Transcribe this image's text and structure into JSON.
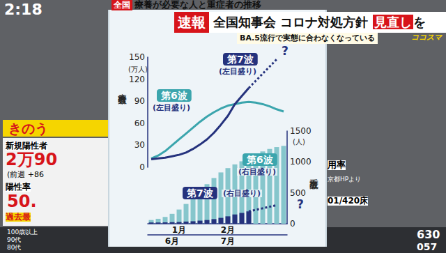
{
  "screen": {
    "clock": "2:18",
    "breaking": "速報",
    "headline": "全国知事会 コロナ対処方針 ",
    "headline_highlight": "見直し",
    "headline_end": "を",
    "subheadline": "BA.5流行で実態に合わなくなっている",
    "program": "ココスマ",
    "left_panel": {
      "tag": "きのう",
      "rows": [
        "新規陽性者",
        "2万90",
        "(前週 +86",
        "陽性率",
        "50.",
        "過去最",
        "100歳以上",
        "90代",
        "80代"
      ]
    },
    "right_panel": [
      "用率",
      "京都HPより",
      "01/420床",
      "630",
      "057"
    ]
  },
  "chart_data": {
    "type": "line",
    "title_tag": "全国",
    "title": "療養が必要な人と重症者の推移",
    "ylabel": "療養者数",
    "yunit": "(万人)",
    "y2label": "重症者数",
    "y2unit": "(人)",
    "ylim": [
      0,
      150
    ],
    "yticks": [
      0,
      30,
      60,
      90,
      120,
      150
    ],
    "y2lim": [
      0,
      1500
    ],
    "y2ticks": [
      0,
      500,
      1000,
      1500
    ],
    "grid": false,
    "x_axes": [
      {
        "categories": [
          null,
          null,
          null,
          null,
          "1月",
          null,
          null,
          null,
          null,
          null,
          null,
          "2月",
          null,
          null,
          null,
          null,
          null,
          null,
          null,
          null
        ]
      },
      {
        "categories": [
          null,
          null,
          null,
          "6月",
          null,
          null,
          null,
          null,
          null,
          null,
          null,
          "7月",
          null,
          null,
          null,
          null,
          null,
          null,
          null,
          null
        ]
      }
    ],
    "series": [
      {
        "name": "第6波",
        "type": "bar",
        "axis": "y2",
        "x_axis": 0,
        "color": "#86c6cc",
        "values": [
          60,
          80,
          110,
          160,
          230,
          320,
          420,
          530,
          640,
          740,
          830,
          900,
          960,
          1010,
          1060,
          1120,
          1170,
          1210,
          1240,
          1260
        ]
      },
      {
        "name": "第7波",
        "type": "bar",
        "axis": "y2",
        "x_axis": 1,
        "color": "#25327d",
        "values": [
          20,
          20,
          22,
          25,
          28,
          35,
          40,
          50,
          60,
          75,
          95,
          120,
          150,
          175,
          200,
          null,
          null,
          null,
          null,
          null
        ]
      },
      {
        "name": "第7波",
        "type": "line",
        "axis": "y2",
        "x_axis": 1,
        "color": "#25327d",
        "line_style": "dotted",
        "values": [
          null,
          null,
          null,
          null,
          null,
          null,
          null,
          null,
          null,
          null,
          null,
          null,
          null,
          null,
          200,
          null,
          null,
          null,
          300,
          null
        ]
      },
      {
        "name": "第6波",
        "type": "line",
        "axis": "y",
        "x_axis": 0,
        "color": "#3ba5ad",
        "values": [
          12,
          16,
          22,
          30,
          38,
          46,
          54,
          62,
          69,
          75,
          80,
          84,
          86,
          88,
          89,
          88,
          86,
          83,
          79,
          76
        ]
      },
      {
        "name": "第7波",
        "type": "line",
        "axis": "y",
        "x_axis": 1,
        "color": "#25327d",
        "values": [
          11,
          12,
          13,
          15,
          17,
          20,
          25,
          31,
          38,
          47,
          58,
          70,
          86,
          97,
          108,
          null,
          null,
          null,
          null,
          null
        ]
      },
      {
        "name": "第7波",
        "type": "line",
        "axis": "y",
        "x_axis": 1,
        "color": "#25327d",
        "line_style": "dotted",
        "values": [
          null,
          null,
          null,
          null,
          null,
          null,
          null,
          null,
          null,
          null,
          null,
          null,
          null,
          null,
          108,
          null,
          null,
          null,
          147,
          null
        ]
      }
    ],
    "annotations": [
      {
        "text": "第7波",
        "note": "(左目盛り)",
        "color": "#25327d"
      },
      {
        "text": "第6波",
        "note": "(左目盛り)",
        "color": "#3ba5ad"
      },
      {
        "text": "第6波",
        "note": "(右目盛り)",
        "color": "#3ba5ad"
      },
      {
        "text": "第7波",
        "note": "(右目盛り)",
        "color": "#25327d"
      },
      {
        "text": "?",
        "color": "#25327d"
      },
      {
        "text": "?",
        "color": "#25327d"
      }
    ]
  }
}
